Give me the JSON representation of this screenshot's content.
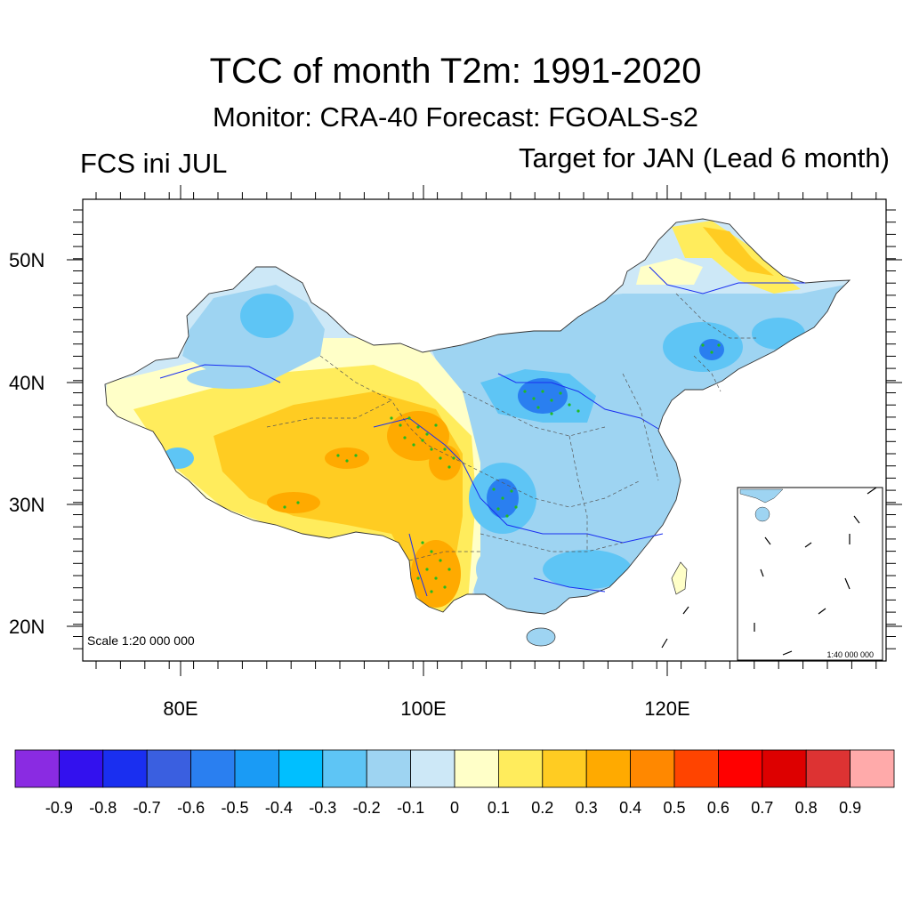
{
  "title": "TCC of month T2m: 1991-2020",
  "subtitle": "Monitor: CRA-40   Forecast: FGOALS-s2",
  "left_label": "FCS ini JUL",
  "right_label": "Target for JAN (Lead 6 month)",
  "map": {
    "region": "China",
    "lon_range": [
      72,
      138
    ],
    "lat_range": [
      17,
      55
    ],
    "lat_ticks": [
      "50N",
      "40N",
      "30N",
      "20N"
    ],
    "lon_ticks": [
      "80E",
      "100E",
      "120E"
    ],
    "scale_label": "Scale 1:20 000 000",
    "inset_scale_label": "1:40 000 000",
    "stipple_color": "#22bb22"
  },
  "colorbar": {
    "colors": [
      "#8a2be2",
      "#3311ee",
      "#1a2ff0",
      "#3a5fe0",
      "#2a7ff0",
      "#1a9bf5",
      "#00bfff",
      "#5ec5f5",
      "#9ed4f2",
      "#cde8f7",
      "#ffffc8",
      "#ffec5c",
      "#ffcc22",
      "#ffaa00",
      "#ff8800",
      "#ff4400",
      "#ff0000",
      "#dd0000",
      "#dd3333",
      "#ffaaaa"
    ],
    "labels": [
      "-0.9",
      "-0.8",
      "-0.7",
      "-0.6",
      "-0.5",
      "-0.4",
      "-0.3",
      "-0.2",
      "-0.1",
      "0",
      "0.1",
      "0.2",
      "0.3",
      "0.4",
      "0.5",
      "0.6",
      "0.7",
      "0.8",
      "0.9"
    ]
  }
}
